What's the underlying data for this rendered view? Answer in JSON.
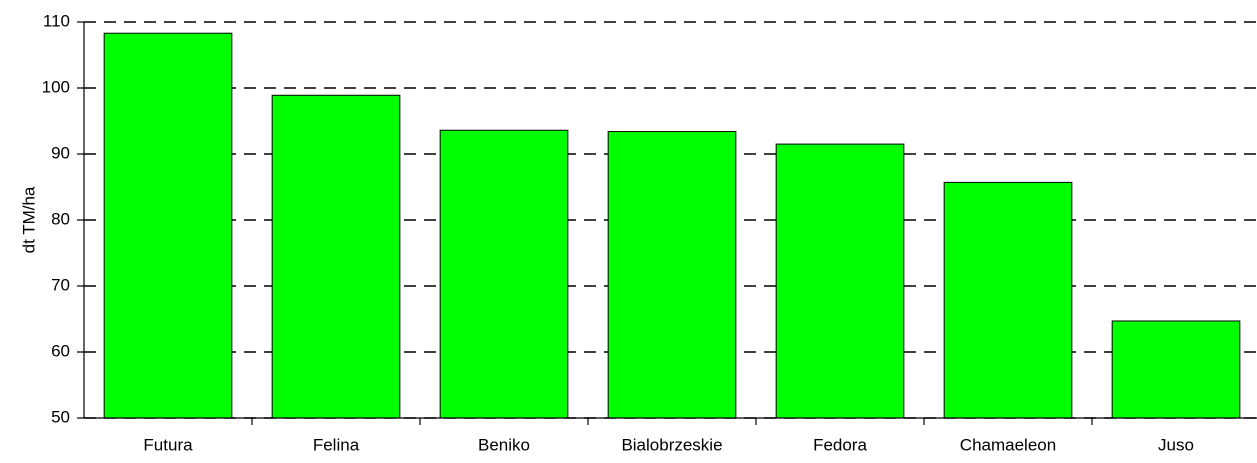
{
  "chart_data": {
    "type": "bar",
    "y_label": "dt TM/ha",
    "categories": [
      "Futura",
      "Felina",
      "Beniko",
      "Bialobrzeskie",
      "Fedora",
      "Chamaeleon",
      "Juso"
    ],
    "values": [
      108.3,
      98.9,
      93.6,
      93.4,
      91.5,
      85.7,
      64.7
    ],
    "color": "#00ff00",
    "ylim": [
      50,
      110
    ],
    "yticks": [
      50,
      60,
      70,
      80,
      90,
      100,
      110
    ],
    "grid": true
  }
}
